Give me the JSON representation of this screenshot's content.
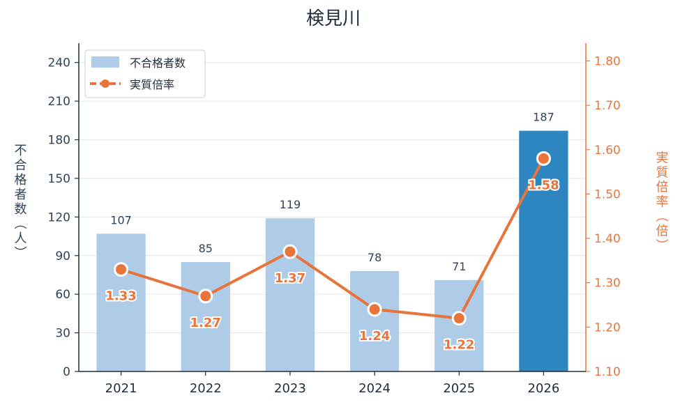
{
  "chart_data": {
    "type": "bar",
    "title": "検見川",
    "categories": [
      "2021",
      "2022",
      "2023",
      "2024",
      "2025",
      "2026"
    ],
    "series": [
      {
        "name": "不合格者数",
        "type": "bar",
        "axis": "left",
        "values": [
          107,
          85,
          119,
          78,
          71,
          187
        ],
        "color": "#aecbe8",
        "highlight_color": "#2e86c1"
      },
      {
        "name": "実質倍率",
        "type": "line",
        "axis": "right",
        "values": [
          1.33,
          1.27,
          1.37,
          1.24,
          1.22,
          1.58
        ],
        "labels": [
          "1.33",
          "1.27",
          "1.37",
          "1.24",
          "1.22",
          "1.58"
        ],
        "color": "#e8743b"
      }
    ],
    "left_axis": {
      "label": "不合格者数（人）",
      "ylim": [
        0,
        255
      ],
      "ticks": [
        0,
        30,
        60,
        90,
        120,
        150,
        180,
        210,
        240
      ]
    },
    "right_axis": {
      "label": "実質倍率（倍）",
      "ylim": [
        1.1,
        1.84
      ],
      "ticks": [
        "1.10",
        "1.20",
        "1.30",
        "1.40",
        "1.50",
        "1.60",
        "1.70",
        "1.80"
      ]
    },
    "grid": true,
    "legend": "top-left"
  }
}
